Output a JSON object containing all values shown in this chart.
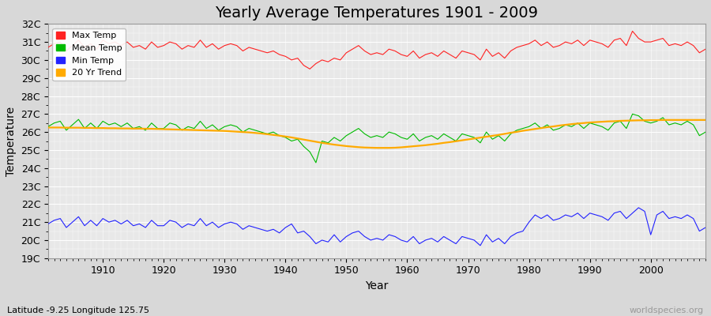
{
  "title": "Yearly Average Temperatures 1901 - 2009",
  "xlabel": "Year",
  "ylabel": "Temperature",
  "subtitle": "Latitude -9.25 Longitude 125.75",
  "watermark": "worldspecies.org",
  "years": [
    1901,
    1902,
    1903,
    1904,
    1905,
    1906,
    1907,
    1908,
    1909,
    1910,
    1911,
    1912,
    1913,
    1914,
    1915,
    1916,
    1917,
    1918,
    1919,
    1920,
    1921,
    1922,
    1923,
    1924,
    1925,
    1926,
    1927,
    1928,
    1929,
    1930,
    1931,
    1932,
    1933,
    1934,
    1935,
    1936,
    1937,
    1938,
    1939,
    1940,
    1941,
    1942,
    1943,
    1944,
    1945,
    1946,
    1947,
    1948,
    1949,
    1950,
    1951,
    1952,
    1953,
    1954,
    1955,
    1956,
    1957,
    1958,
    1959,
    1960,
    1961,
    1962,
    1963,
    1964,
    1965,
    1966,
    1967,
    1968,
    1969,
    1970,
    1971,
    1972,
    1973,
    1974,
    1975,
    1976,
    1977,
    1978,
    1979,
    1980,
    1981,
    1982,
    1983,
    1984,
    1985,
    1986,
    1987,
    1988,
    1989,
    1990,
    1991,
    1992,
    1993,
    1994,
    1995,
    1996,
    1997,
    1998,
    1999,
    2000,
    2001,
    2002,
    2003,
    2004,
    2005,
    2006,
    2007,
    2008,
    2009
  ],
  "max_temp": [
    30.7,
    30.9,
    31.0,
    30.5,
    30.8,
    31.1,
    30.7,
    30.9,
    30.6,
    31.1,
    30.9,
    31.0,
    30.8,
    31.0,
    30.7,
    30.8,
    30.6,
    31.0,
    30.7,
    30.8,
    31.0,
    30.9,
    30.6,
    30.8,
    30.7,
    31.1,
    30.7,
    30.9,
    30.6,
    30.8,
    30.9,
    30.8,
    30.5,
    30.7,
    30.6,
    30.5,
    30.4,
    30.5,
    30.3,
    30.2,
    30.0,
    30.1,
    29.7,
    29.5,
    29.8,
    30.0,
    29.9,
    30.1,
    30.0,
    30.4,
    30.6,
    30.8,
    30.5,
    30.3,
    30.4,
    30.3,
    30.6,
    30.5,
    30.3,
    30.2,
    30.5,
    30.1,
    30.3,
    30.4,
    30.2,
    30.5,
    30.3,
    30.1,
    30.5,
    30.4,
    30.3,
    30.0,
    30.6,
    30.2,
    30.4,
    30.1,
    30.5,
    30.7,
    30.8,
    30.9,
    31.1,
    30.8,
    31.0,
    30.7,
    30.8,
    31.0,
    30.9,
    31.1,
    30.8,
    31.1,
    31.0,
    30.9,
    30.7,
    31.1,
    31.2,
    30.8,
    31.6,
    31.2,
    31.0,
    31.0,
    31.1,
    31.2,
    30.8,
    30.9,
    30.8,
    31.0,
    30.8,
    30.4,
    30.6
  ],
  "mean_temp": [
    26.3,
    26.5,
    26.6,
    26.1,
    26.4,
    26.7,
    26.2,
    26.5,
    26.2,
    26.6,
    26.4,
    26.5,
    26.3,
    26.5,
    26.2,
    26.3,
    26.1,
    26.5,
    26.2,
    26.2,
    26.5,
    26.4,
    26.1,
    26.3,
    26.2,
    26.6,
    26.2,
    26.4,
    26.1,
    26.3,
    26.4,
    26.3,
    26.0,
    26.2,
    26.1,
    26.0,
    25.9,
    26.0,
    25.8,
    25.7,
    25.5,
    25.6,
    25.2,
    24.9,
    24.3,
    25.5,
    25.4,
    25.7,
    25.5,
    25.8,
    26.0,
    26.2,
    25.9,
    25.7,
    25.8,
    25.7,
    26.0,
    25.9,
    25.7,
    25.6,
    25.9,
    25.5,
    25.7,
    25.8,
    25.6,
    25.9,
    25.7,
    25.5,
    25.9,
    25.8,
    25.7,
    25.4,
    26.0,
    25.6,
    25.8,
    25.5,
    25.9,
    26.1,
    26.2,
    26.3,
    26.5,
    26.2,
    26.4,
    26.1,
    26.2,
    26.4,
    26.3,
    26.5,
    26.2,
    26.5,
    26.4,
    26.3,
    26.1,
    26.5,
    26.6,
    26.2,
    27.0,
    26.9,
    26.6,
    26.5,
    26.6,
    26.8,
    26.4,
    26.5,
    26.4,
    26.6,
    26.4,
    25.8,
    26.0
  ],
  "min_temp": [
    20.9,
    21.1,
    21.2,
    20.7,
    21.0,
    21.3,
    20.8,
    21.1,
    20.8,
    21.2,
    21.0,
    21.1,
    20.9,
    21.1,
    20.8,
    20.9,
    20.7,
    21.1,
    20.8,
    20.8,
    21.1,
    21.0,
    20.7,
    20.9,
    20.8,
    21.2,
    20.8,
    21.0,
    20.7,
    20.9,
    21.0,
    20.9,
    20.6,
    20.8,
    20.7,
    20.6,
    20.5,
    20.6,
    20.4,
    20.7,
    20.9,
    20.4,
    20.5,
    20.2,
    19.8,
    20.0,
    19.9,
    20.3,
    19.9,
    20.2,
    20.4,
    20.5,
    20.2,
    20.0,
    20.1,
    20.0,
    20.3,
    20.2,
    20.0,
    19.9,
    20.2,
    19.8,
    20.0,
    20.1,
    19.9,
    20.2,
    20.0,
    19.8,
    20.2,
    20.1,
    20.0,
    19.7,
    20.3,
    19.9,
    20.1,
    19.8,
    20.2,
    20.4,
    20.5,
    21.0,
    21.4,
    21.2,
    21.4,
    21.1,
    21.2,
    21.4,
    21.3,
    21.5,
    21.2,
    21.5,
    21.4,
    21.3,
    21.1,
    21.5,
    21.6,
    21.2,
    21.5,
    21.8,
    21.6,
    20.3,
    21.4,
    21.6,
    21.2,
    21.3,
    21.2,
    21.4,
    21.2,
    20.5,
    20.7
  ],
  "trend_temp": [
    26.25,
    26.25,
    26.25,
    26.24,
    26.24,
    26.24,
    26.23,
    26.23,
    26.22,
    26.22,
    26.21,
    26.21,
    26.2,
    26.2,
    26.19,
    26.19,
    26.18,
    26.18,
    26.17,
    26.16,
    26.15,
    26.14,
    26.13,
    26.12,
    26.11,
    26.1,
    26.09,
    26.08,
    26.07,
    26.06,
    26.04,
    26.02,
    26.0,
    25.98,
    25.95,
    25.92,
    25.88,
    25.84,
    25.8,
    25.75,
    25.7,
    25.64,
    25.58,
    25.52,
    25.46,
    25.4,
    25.35,
    25.3,
    25.26,
    25.22,
    25.19,
    25.16,
    25.14,
    25.13,
    25.12,
    25.12,
    25.12,
    25.13,
    25.15,
    25.18,
    25.21,
    25.24,
    25.27,
    25.31,
    25.35,
    25.4,
    25.44,
    25.49,
    25.54,
    25.59,
    25.64,
    25.69,
    25.74,
    25.79,
    25.84,
    25.9,
    25.96,
    26.01,
    26.07,
    26.12,
    26.17,
    26.22,
    26.27,
    26.31,
    26.36,
    26.4,
    26.44,
    26.47,
    26.5,
    26.53,
    26.55,
    26.57,
    26.59,
    26.6,
    26.62,
    26.63,
    26.64,
    26.65,
    26.65,
    26.66,
    26.66,
    26.67,
    26.67,
    26.67,
    26.67,
    26.67,
    26.67,
    26.67,
    26.67
  ],
  "ylim": [
    19,
    32
  ],
  "yticks": [
    19,
    20,
    21,
    22,
    23,
    24,
    25,
    26,
    27,
    28,
    29,
    30,
    31,
    32
  ],
  "ytick_labels": [
    "19C",
    "20C",
    "21C",
    "22C",
    "23C",
    "24C",
    "25C",
    "26C",
    "27C",
    "28C",
    "29C",
    "30C",
    "31C",
    "32C"
  ],
  "bg_color": "#d8d8d8",
  "plot_bg_color": "#e8e8e8",
  "grid_color": "#ffffff",
  "max_color": "#ff2222",
  "mean_color": "#00bb00",
  "min_color": "#2222ff",
  "trend_color": "#ffaa00",
  "title_fontsize": 14,
  "label_fontsize": 9,
  "xticks": [
    1910,
    1920,
    1930,
    1940,
    1950,
    1960,
    1970,
    1980,
    1990,
    2000
  ]
}
